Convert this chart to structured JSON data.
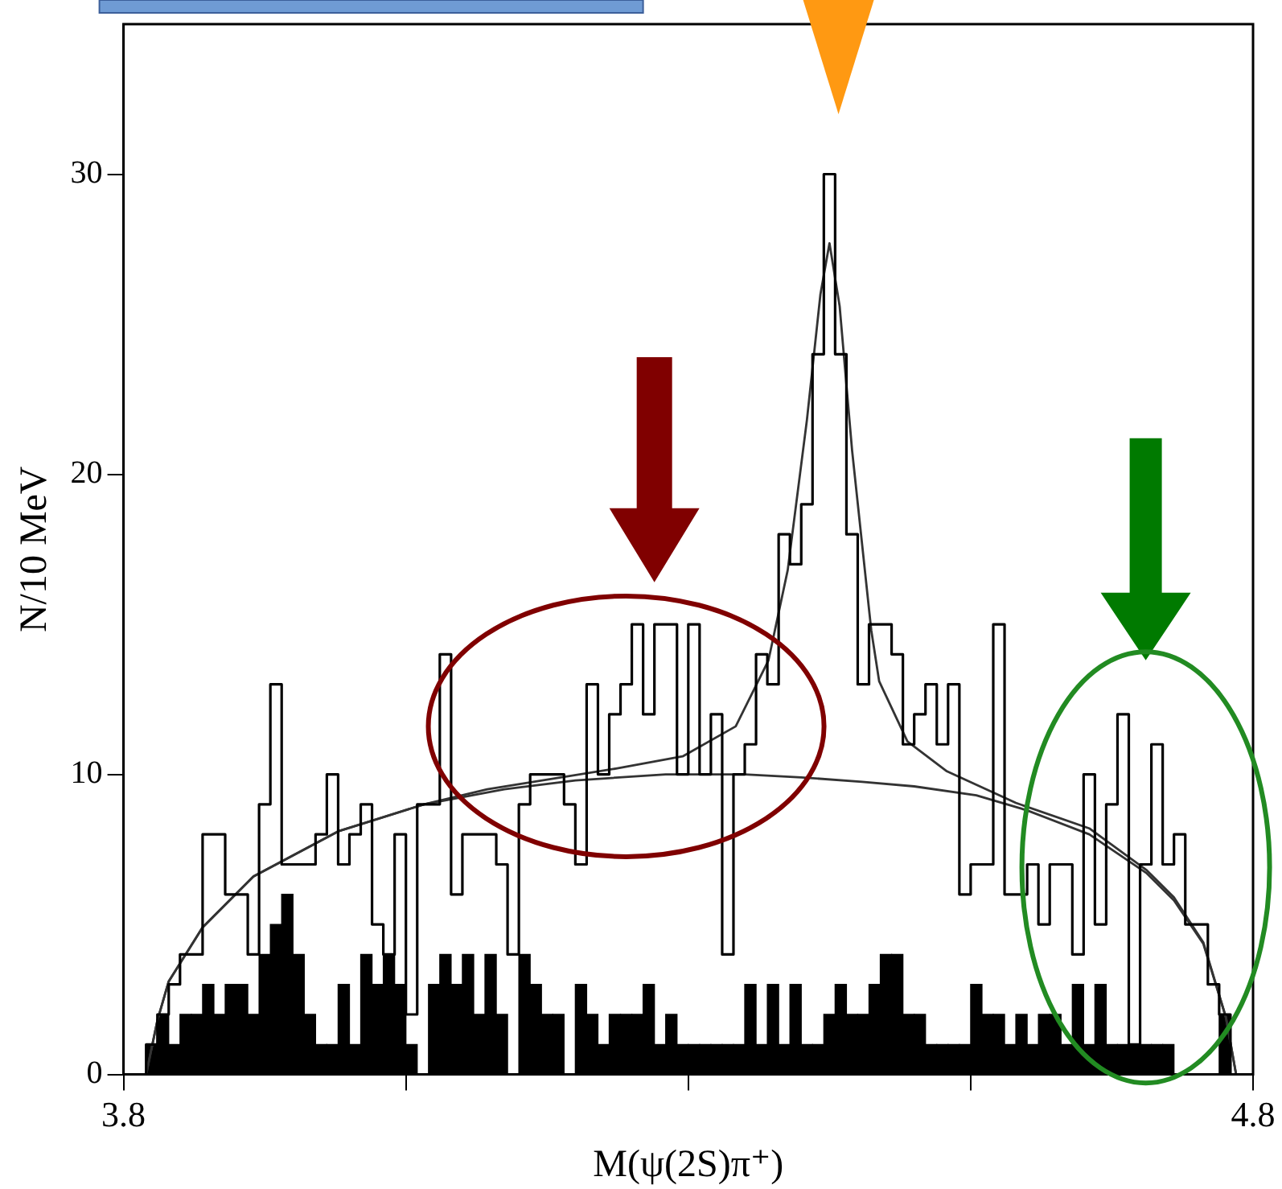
{
  "chart_data": {
    "type": "histogram",
    "xlabel": "M(ψ(2S)π⁺)",
    "ylabel": "N/10 MeV",
    "xlim": [
      3.8,
      4.8
    ],
    "xticks": [
      3.8,
      {
        "value": 4.05,
        "label": null
      },
      {
        "value": 4.3,
        "label": null
      },
      {
        "value": 4.55,
        "label": null
      },
      4.8
    ],
    "ylim": [
      0,
      35
    ],
    "yticks": [
      0,
      10,
      20,
      30
    ],
    "grid": false,
    "legend": false,
    "bins": [
      3.8,
      3.81,
      3.82,
      3.83,
      3.84,
      3.85,
      3.86,
      3.87,
      3.88,
      3.89,
      3.9,
      3.91,
      3.92,
      3.93,
      3.94,
      3.95,
      3.96,
      3.97,
      3.98,
      3.99,
      4.0,
      4.01,
      4.02,
      4.03,
      4.04,
      4.05,
      4.06,
      4.07,
      4.08,
      4.09,
      4.1,
      4.11,
      4.12,
      4.13,
      4.14,
      4.15,
      4.16,
      4.17,
      4.18,
      4.19,
      4.2,
      4.21,
      4.22,
      4.23,
      4.24,
      4.25,
      4.26,
      4.27,
      4.28,
      4.29,
      4.3,
      4.31,
      4.32,
      4.33,
      4.34,
      4.35,
      4.36,
      4.37,
      4.38,
      4.39,
      4.4,
      4.41,
      4.42,
      4.43,
      4.44,
      4.45,
      4.46,
      4.47,
      4.48,
      4.49,
      4.5,
      4.51,
      4.52,
      4.53,
      4.54,
      4.55,
      4.56,
      4.57,
      4.58,
      4.59,
      4.6,
      4.61,
      4.62,
      4.63,
      4.64,
      4.65,
      4.66,
      4.67,
      4.68,
      4.69,
      4.7,
      4.71,
      4.72,
      4.73,
      4.74,
      4.75,
      4.76,
      4.77,
      4.78,
      4.79,
      4.8
    ],
    "series": [
      {
        "type": "step",
        "color": "#000000",
        "x": [
          3.8,
          3.81,
          3.82,
          3.83,
          3.84,
          3.85,
          3.86,
          3.87,
          3.88,
          3.89,
          3.9,
          3.91,
          3.92,
          3.93,
          3.94,
          3.95,
          3.96,
          3.97,
          3.98,
          3.99,
          4.0,
          4.01,
          4.02,
          4.03,
          4.04,
          4.05,
          4.06,
          4.07,
          4.08,
          4.09,
          4.1,
          4.11,
          4.12,
          4.13,
          4.14,
          4.15,
          4.16,
          4.17,
          4.18,
          4.19,
          4.2,
          4.21,
          4.22,
          4.23,
          4.24,
          4.25,
          4.26,
          4.27,
          4.28,
          4.29,
          4.3,
          4.31,
          4.32,
          4.33,
          4.34,
          4.35,
          4.36,
          4.37,
          4.38,
          4.39,
          4.4,
          4.41,
          4.42,
          4.43,
          4.44,
          4.45,
          4.46,
          4.47,
          4.48,
          4.49,
          4.5,
          4.51,
          4.52,
          4.53,
          4.54,
          4.55,
          4.56,
          4.57,
          4.58,
          4.59,
          4.6,
          4.61,
          4.62,
          4.63,
          4.64,
          4.65,
          4.66,
          4.67,
          4.68,
          4.69,
          4.7,
          4.71,
          4.72,
          4.73,
          4.74,
          4.75,
          4.76,
          4.77,
          4.78,
          4.79
        ],
        "values": [
          0,
          0,
          1,
          2,
          3,
          4,
          4,
          8,
          8,
          6,
          6,
          4,
          9,
          13,
          7,
          7,
          7,
          8,
          10,
          7,
          8,
          9,
          5,
          4,
          8,
          2,
          9,
          9,
          14,
          6,
          8,
          8,
          8,
          7,
          4,
          9,
          10,
          10,
          10,
          9,
          7,
          13,
          10,
          12,
          13,
          15,
          12,
          15,
          15,
          10,
          15,
          10,
          12,
          4,
          10,
          11,
          14,
          13,
          18,
          17,
          19,
          24,
          30,
          24,
          18,
          13,
          15,
          15,
          14,
          11,
          12,
          13,
          11,
          13,
          6,
          7,
          7,
          15,
          6,
          6,
          7,
          5,
          7,
          7,
          4,
          10,
          5,
          9,
          12,
          1,
          7,
          11,
          7,
          8,
          5,
          5,
          3,
          2,
          0,
          0
        ]
      },
      {
        "type": "histogram",
        "color": "#000000",
        "values": [
          0,
          0,
          1,
          2,
          1,
          2,
          2,
          3,
          2,
          3,
          3,
          2,
          4,
          5,
          6,
          4,
          2,
          1,
          1,
          3,
          1,
          4,
          3,
          4,
          3,
          1,
          0,
          3,
          4,
          3,
          4,
          2,
          4,
          2,
          0,
          4,
          3,
          2,
          2,
          0,
          3,
          2,
          1,
          2,
          2,
          2,
          3,
          1,
          2,
          1,
          1,
          1,
          1,
          1,
          1,
          3,
          1,
          3,
          1,
          3,
          1,
          1,
          2,
          3,
          2,
          2,
          3,
          4,
          4,
          2,
          2,
          1,
          1,
          1,
          1,
          3,
          2,
          2,
          1,
          2,
          1,
          2,
          2,
          1,
          3,
          1,
          3,
          1,
          1,
          1,
          1,
          1,
          1,
          0,
          0,
          0,
          0,
          2,
          0,
          0
        ]
      },
      {
        "type": "line",
        "color": "#333333",
        "x": [
          3.82,
          3.83,
          3.84,
          3.87,
          3.915,
          3.99,
          4.066,
          4.137,
          4.2,
          4.28,
          4.35,
          4.4,
          4.454,
          4.5,
          4.555,
          4.6,
          4.655,
          4.706,
          4.73,
          4.756,
          4.776,
          4.785
        ],
        "values": [
          0,
          1.8,
          3.1,
          4.9,
          6.6,
          8.1,
          9.0,
          9.5,
          9.8,
          10.0,
          10.0,
          9.9,
          9.75,
          9.6,
          9.3,
          8.8,
          8.0,
          6.7,
          5.8,
          4.35,
          1.9,
          0
        ]
      },
      {
        "type": "line",
        "color": "#333333",
        "x": [
          3.82,
          3.83,
          3.84,
          3.87,
          3.915,
          3.99,
          4.066,
          4.122,
          4.237,
          4.295,
          4.342,
          4.371,
          4.388,
          4.405,
          4.417,
          4.425,
          4.434,
          4.445,
          4.462,
          4.469,
          4.494,
          4.529,
          4.59,
          4.655,
          4.706,
          4.73,
          4.756,
          4.776,
          4.785
        ],
        "values": [
          0,
          1.8,
          3.1,
          4.9,
          6.6,
          8.1,
          9.0,
          9.5,
          10.2,
          10.6,
          11.6,
          13.8,
          16.8,
          21.8,
          26,
          27.7,
          25.6,
          20.8,
          14.8,
          13.1,
          11.1,
          10.1,
          9.05,
          8.2,
          6.8,
          5.9,
          4.4,
          1.9,
          0
        ]
      }
    ]
  }
}
